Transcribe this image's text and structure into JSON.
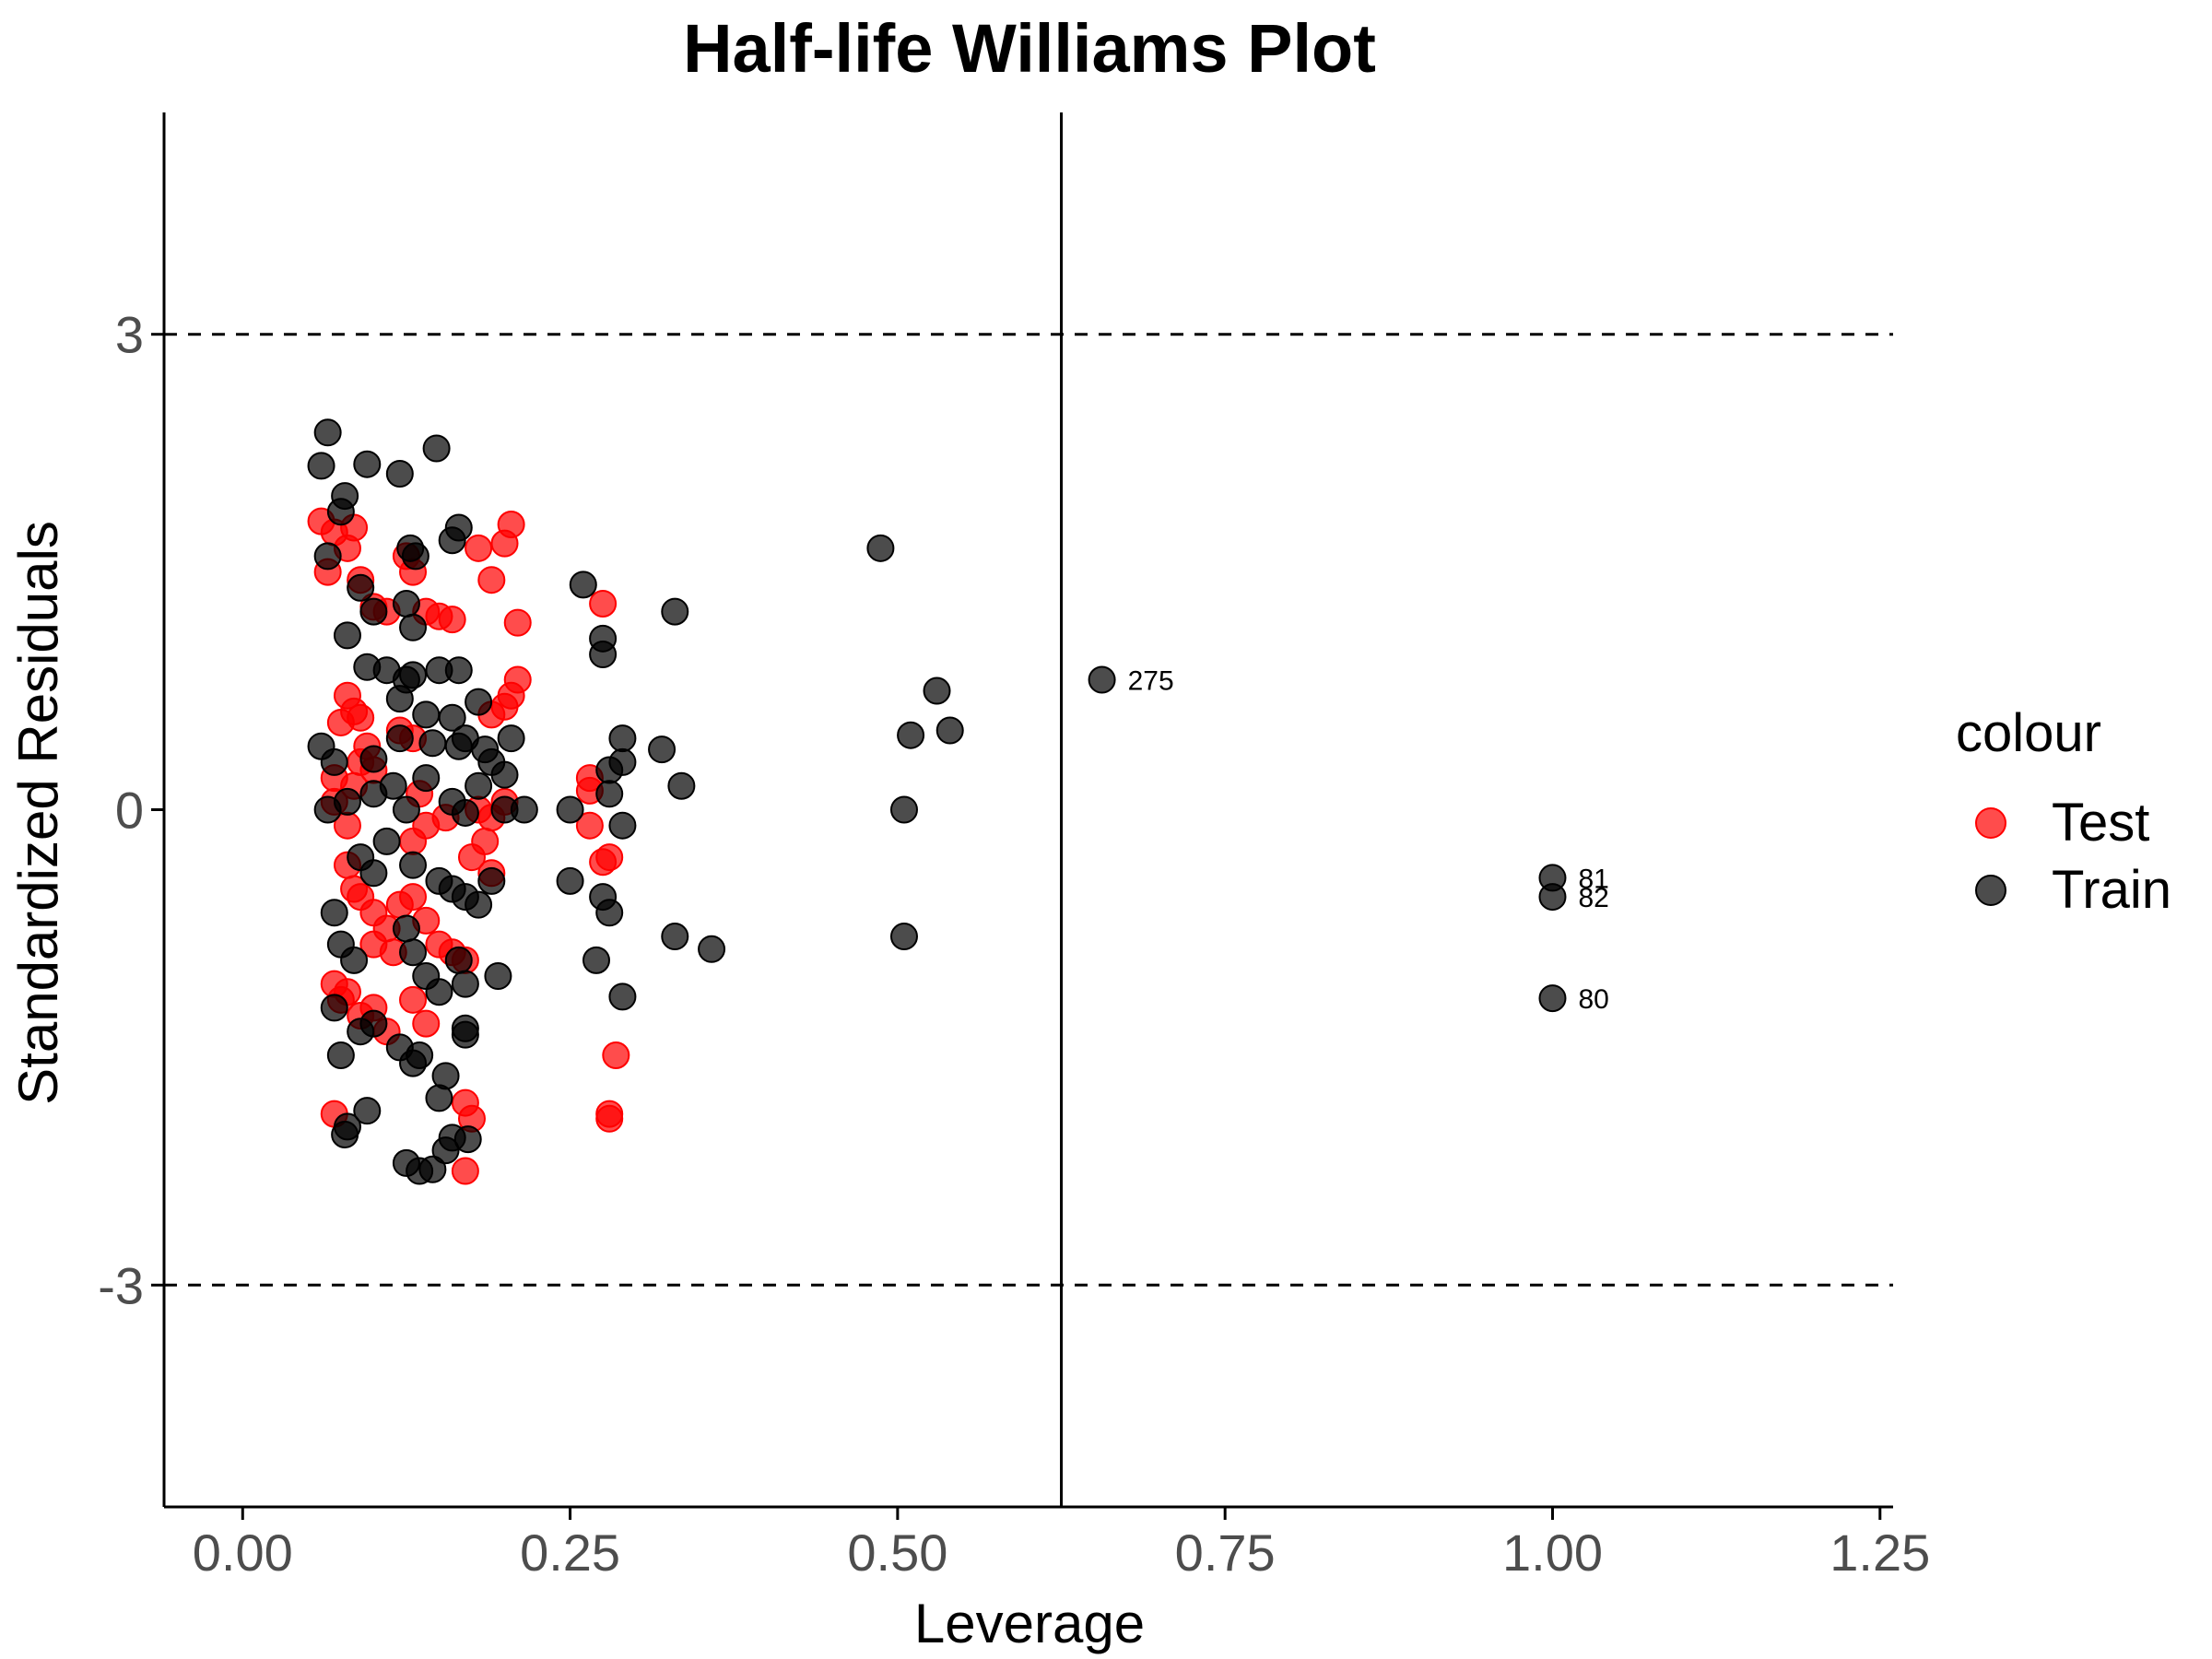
{
  "chart_data": {
    "type": "scatter",
    "title": "Half-life Williams Plot",
    "xlabel": "Leverage",
    "ylabel": "Standardized Residuals",
    "xlim": [
      -0.06,
      1.26
    ],
    "ylim": [
      -4.4,
      4.4
    ],
    "xticks": [
      "0.00",
      "0.25",
      "0.50",
      "0.75",
      "1.00",
      "1.25"
    ],
    "xtick_values": [
      0,
      0.25,
      0.5,
      0.75,
      1.0,
      1.25
    ],
    "yticks": [
      "3",
      "0",
      "-3"
    ],
    "ytick_values": [
      3,
      0,
      -3
    ],
    "reference_lines": {
      "h_dashed": [
        3,
        -3
      ],
      "v_solid": 0.625
    },
    "legend": {
      "title": "colour",
      "position": "right",
      "entries": [
        {
          "label": "Test",
          "color": "#ff0000"
        },
        {
          "label": "Train",
          "color": "#000000"
        }
      ]
    },
    "point_labels": [
      {
        "text": "275",
        "x": 0.656,
        "y": 0.82
      },
      {
        "text": "81",
        "x": 1.0,
        "y": -0.43
      },
      {
        "text": "82",
        "x": 1.0,
        "y": -0.55
      },
      {
        "text": "80",
        "x": 1.0,
        "y": -1.19
      }
    ],
    "series": [
      {
        "name": "Test",
        "color": "#ff0000",
        "points": [
          [
            0.06,
            1.82
          ],
          [
            0.065,
            1.5
          ],
          [
            0.07,
            1.75
          ],
          [
            0.08,
            1.65
          ],
          [
            0.085,
            1.78
          ],
          [
            0.09,
            1.45
          ],
          [
            0.1,
            1.28
          ],
          [
            0.11,
            1.25
          ],
          [
            0.125,
            1.6
          ],
          [
            0.13,
            1.5
          ],
          [
            0.14,
            1.25
          ],
          [
            0.15,
            1.22
          ],
          [
            0.16,
            1.2
          ],
          [
            0.18,
            1.65
          ],
          [
            0.19,
            1.45
          ],
          [
            0.2,
            1.68
          ],
          [
            0.205,
            1.8
          ],
          [
            0.21,
            1.18
          ],
          [
            0.275,
            1.3
          ],
          [
            0.07,
            0.2
          ],
          [
            0.075,
            0.55
          ],
          [
            0.08,
            0.72
          ],
          [
            0.085,
            0.62
          ],
          [
            0.09,
            0.58
          ],
          [
            0.095,
            0.4
          ],
          [
            0.07,
            0.05
          ],
          [
            0.08,
            -0.1
          ],
          [
            0.085,
            0.15
          ],
          [
            0.09,
            0.3
          ],
          [
            0.1,
            0.25
          ],
          [
            0.12,
            0.5
          ],
          [
            0.13,
            0.45
          ],
          [
            0.135,
            0.1
          ],
          [
            0.2,
            0.65
          ],
          [
            0.205,
            0.72
          ],
          [
            0.21,
            0.82
          ],
          [
            0.19,
            0.6
          ],
          [
            0.18,
            0.0
          ],
          [
            0.19,
            -0.05
          ],
          [
            0.2,
            0.05
          ],
          [
            0.265,
            0.2
          ],
          [
            0.265,
            0.12
          ],
          [
            0.265,
            -0.1
          ],
          [
            0.08,
            -0.35
          ],
          [
            0.085,
            -0.5
          ],
          [
            0.09,
            -0.55
          ],
          [
            0.1,
            -0.65
          ],
          [
            0.11,
            -0.75
          ],
          [
            0.12,
            -0.6
          ],
          [
            0.13,
            -0.55
          ],
          [
            0.14,
            -0.7
          ],
          [
            0.15,
            -0.85
          ],
          [
            0.16,
            -0.9
          ],
          [
            0.17,
            -0.95
          ],
          [
            0.175,
            -0.3
          ],
          [
            0.185,
            -0.2
          ],
          [
            0.19,
            -0.4
          ],
          [
            0.275,
            -0.33
          ],
          [
            0.28,
            -0.3
          ],
          [
            0.13,
            -0.2
          ],
          [
            0.14,
            -0.1
          ],
          [
            0.155,
            -0.05
          ],
          [
            0.1,
            -0.85
          ],
          [
            0.115,
            -0.9
          ],
          [
            0.07,
            -1.1
          ],
          [
            0.075,
            -1.2
          ],
          [
            0.08,
            -1.15
          ],
          [
            0.09,
            -1.3
          ],
          [
            0.1,
            -1.25
          ],
          [
            0.11,
            -1.4
          ],
          [
            0.13,
            -1.2
          ],
          [
            0.14,
            -1.35
          ],
          [
            0.285,
            -1.55
          ],
          [
            0.07,
            -1.92
          ],
          [
            0.17,
            -1.85
          ],
          [
            0.175,
            -1.95
          ],
          [
            0.28,
            -1.92
          ],
          [
            0.28,
            -1.95
          ],
          [
            0.17,
            -2.28
          ]
        ]
      },
      {
        "name": "Train",
        "color": "#000000",
        "points": [
          [
            0.065,
            2.38
          ],
          [
            0.06,
            2.17
          ],
          [
            0.095,
            2.18
          ],
          [
            0.12,
            2.12
          ],
          [
            0.148,
            2.28
          ],
          [
            0.075,
            1.88
          ],
          [
            0.078,
            1.98
          ],
          [
            0.065,
            1.6
          ],
          [
            0.09,
            1.4
          ],
          [
            0.1,
            1.25
          ],
          [
            0.128,
            1.65
          ],
          [
            0.132,
            1.6
          ],
          [
            0.125,
            1.3
          ],
          [
            0.13,
            1.15
          ],
          [
            0.16,
            1.7
          ],
          [
            0.165,
            1.78
          ],
          [
            0.26,
            1.42
          ],
          [
            0.275,
            1.08
          ],
          [
            0.275,
            0.98
          ],
          [
            0.33,
            1.25
          ],
          [
            0.487,
            1.65
          ],
          [
            0.08,
            1.1
          ],
          [
            0.095,
            0.9
          ],
          [
            0.11,
            0.88
          ],
          [
            0.125,
            0.82
          ],
          [
            0.13,
            0.85
          ],
          [
            0.15,
            0.88
          ],
          [
            0.165,
            0.88
          ],
          [
            0.12,
            0.7
          ],
          [
            0.14,
            0.6
          ],
          [
            0.16,
            0.58
          ],
          [
            0.18,
            0.68
          ],
          [
            0.06,
            0.4
          ],
          [
            0.07,
            0.3
          ],
          [
            0.1,
            0.32
          ],
          [
            0.12,
            0.45
          ],
          [
            0.145,
            0.42
          ],
          [
            0.165,
            0.4
          ],
          [
            0.17,
            0.45
          ],
          [
            0.185,
            0.38
          ],
          [
            0.205,
            0.45
          ],
          [
            0.19,
            0.3
          ],
          [
            0.2,
            0.22
          ],
          [
            0.065,
            0.0
          ],
          [
            0.08,
            0.05
          ],
          [
            0.1,
            0.1
          ],
          [
            0.115,
            0.15
          ],
          [
            0.125,
            0.0
          ],
          [
            0.14,
            0.2
          ],
          [
            0.16,
            0.05
          ],
          [
            0.17,
            -0.02
          ],
          [
            0.18,
            0.15
          ],
          [
            0.2,
            0.0
          ],
          [
            0.215,
            0.0
          ],
          [
            0.25,
            0.0
          ],
          [
            0.28,
            0.25
          ],
          [
            0.29,
            0.45
          ],
          [
            0.29,
            0.3
          ],
          [
            0.28,
            0.1
          ],
          [
            0.29,
            -0.1
          ],
          [
            0.32,
            0.38
          ],
          [
            0.335,
            0.15
          ],
          [
            0.505,
            0.0
          ],
          [
            0.51,
            0.47
          ],
          [
            0.53,
            0.75
          ],
          [
            0.54,
            0.5
          ],
          [
            0.09,
            -0.3
          ],
          [
            0.1,
            -0.4
          ],
          [
            0.11,
            -0.2
          ],
          [
            0.13,
            -0.35
          ],
          [
            0.15,
            -0.45
          ],
          [
            0.16,
            -0.5
          ],
          [
            0.17,
            -0.55
          ],
          [
            0.18,
            -0.6
          ],
          [
            0.19,
            -0.45
          ],
          [
            0.25,
            -0.45
          ],
          [
            0.275,
            -0.55
          ],
          [
            0.28,
            -0.65
          ],
          [
            0.07,
            -0.65
          ],
          [
            0.075,
            -0.85
          ],
          [
            0.085,
            -0.95
          ],
          [
            0.125,
            -0.75
          ],
          [
            0.13,
            -0.9
          ],
          [
            0.14,
            -1.05
          ],
          [
            0.15,
            -1.15
          ],
          [
            0.165,
            -0.95
          ],
          [
            0.17,
            -1.1
          ],
          [
            0.195,
            -1.05
          ],
          [
            0.27,
            -0.95
          ],
          [
            0.33,
            -0.8
          ],
          [
            0.358,
            -0.88
          ],
          [
            0.505,
            -0.8
          ],
          [
            0.29,
            -1.18
          ],
          [
            0.07,
            -1.25
          ],
          [
            0.09,
            -1.4
          ],
          [
            0.1,
            -1.35
          ],
          [
            0.12,
            -1.5
          ],
          [
            0.13,
            -1.6
          ],
          [
            0.135,
            -1.55
          ],
          [
            0.15,
            -1.82
          ],
          [
            0.155,
            -1.68
          ],
          [
            0.075,
            -1.55
          ],
          [
            0.095,
            -1.9
          ],
          [
            0.08,
            -2.0
          ],
          [
            0.078,
            -2.05
          ],
          [
            0.125,
            -2.23
          ],
          [
            0.135,
            -2.28
          ],
          [
            0.145,
            -2.27
          ],
          [
            0.155,
            -2.15
          ],
          [
            0.16,
            -2.07
          ],
          [
            0.172,
            -2.08
          ],
          [
            0.17,
            -1.38
          ],
          [
            0.17,
            -1.42
          ],
          [
            0.656,
            0.82
          ],
          [
            1.0,
            -0.43
          ],
          [
            1.0,
            -0.55
          ],
          [
            1.0,
            -1.19
          ]
        ]
      }
    ]
  }
}
